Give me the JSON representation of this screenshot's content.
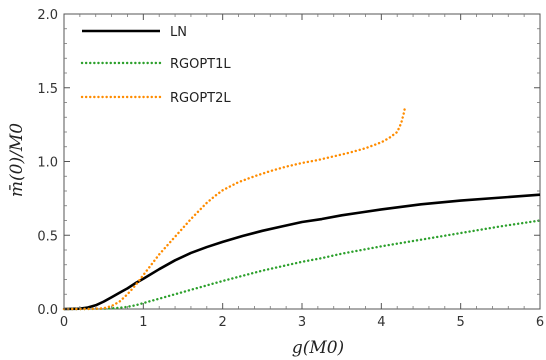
{
  "chart_data": {
    "type": "line",
    "title": "",
    "xlabel": "g(M0)",
    "ylabel": "m̄(0)/M0",
    "xlim": [
      0,
      6
    ],
    "ylim": [
      0,
      2.0
    ],
    "x_ticks": [
      0,
      1,
      2,
      3,
      4,
      5,
      6
    ],
    "y_ticks": [
      "0.0",
      "0.5",
      "1.0",
      "1.5",
      "2.0"
    ],
    "grid": false,
    "legend_position": "top-left",
    "series": [
      {
        "name": "LN",
        "color": "#000000",
        "style": "solid",
        "points": [
          [
            0,
            0
          ],
          [
            0.2,
            0.002
          ],
          [
            0.3,
            0.01
          ],
          [
            0.4,
            0.025
          ],
          [
            0.5,
            0.05
          ],
          [
            0.6,
            0.08
          ],
          [
            0.7,
            0.11
          ],
          [
            0.8,
            0.14
          ],
          [
            0.9,
            0.175
          ],
          [
            1.0,
            0.205
          ],
          [
            1.2,
            0.27
          ],
          [
            1.4,
            0.33
          ],
          [
            1.6,
            0.38
          ],
          [
            1.8,
            0.42
          ],
          [
            2.0,
            0.455
          ],
          [
            2.25,
            0.495
          ],
          [
            2.5,
            0.53
          ],
          [
            2.75,
            0.56
          ],
          [
            3.0,
            0.59
          ],
          [
            3.25,
            0.61
          ],
          [
            3.5,
            0.635
          ],
          [
            3.75,
            0.655
          ],
          [
            4.0,
            0.675
          ],
          [
            4.5,
            0.71
          ],
          [
            5.0,
            0.735
          ],
          [
            5.5,
            0.755
          ],
          [
            6.0,
            0.775
          ]
        ]
      },
      {
        "name": "RGOPT1L",
        "color": "#2ca02c",
        "style": "dotted",
        "points": [
          [
            0,
            0
          ],
          [
            0.3,
            0.0
          ],
          [
            0.5,
            0.002
          ],
          [
            0.7,
            0.008
          ],
          [
            0.8,
            0.015
          ],
          [
            0.9,
            0.025
          ],
          [
            1.0,
            0.04
          ],
          [
            1.2,
            0.07
          ],
          [
            1.4,
            0.1
          ],
          [
            1.6,
            0.13
          ],
          [
            1.8,
            0.16
          ],
          [
            2.0,
            0.19
          ],
          [
            2.25,
            0.225
          ],
          [
            2.5,
            0.26
          ],
          [
            2.75,
            0.29
          ],
          [
            3.0,
            0.32
          ],
          [
            3.25,
            0.345
          ],
          [
            3.5,
            0.375
          ],
          [
            3.75,
            0.4
          ],
          [
            4.0,
            0.425
          ],
          [
            4.5,
            0.47
          ],
          [
            5.0,
            0.515
          ],
          [
            5.5,
            0.56
          ],
          [
            6.0,
            0.6
          ]
        ]
      },
      {
        "name": "RGOPT2L",
        "color": "#ff8c00",
        "style": "dotted",
        "points": [
          [
            0,
            0
          ],
          [
            0.3,
            0.0
          ],
          [
            0.5,
            0.005
          ],
          [
            0.6,
            0.02
          ],
          [
            0.7,
            0.05
          ],
          [
            0.8,
            0.1
          ],
          [
            0.9,
            0.16
          ],
          [
            1.0,
            0.23
          ],
          [
            1.1,
            0.3
          ],
          [
            1.2,
            0.37
          ],
          [
            1.3,
            0.43
          ],
          [
            1.4,
            0.49
          ],
          [
            1.5,
            0.55
          ],
          [
            1.6,
            0.61
          ],
          [
            1.7,
            0.665
          ],
          [
            1.8,
            0.72
          ],
          [
            1.9,
            0.765
          ],
          [
            2.0,
            0.805
          ],
          [
            2.2,
            0.86
          ],
          [
            2.4,
            0.9
          ],
          [
            2.6,
            0.935
          ],
          [
            2.8,
            0.965
          ],
          [
            3.0,
            0.99
          ],
          [
            3.2,
            1.01
          ],
          [
            3.4,
            1.035
          ],
          [
            3.6,
            1.06
          ],
          [
            3.8,
            1.09
          ],
          [
            4.0,
            1.13
          ],
          [
            4.1,
            1.16
          ],
          [
            4.2,
            1.2
          ],
          [
            4.25,
            1.26
          ],
          [
            4.28,
            1.32
          ],
          [
            4.3,
            1.37
          ]
        ]
      }
    ]
  }
}
